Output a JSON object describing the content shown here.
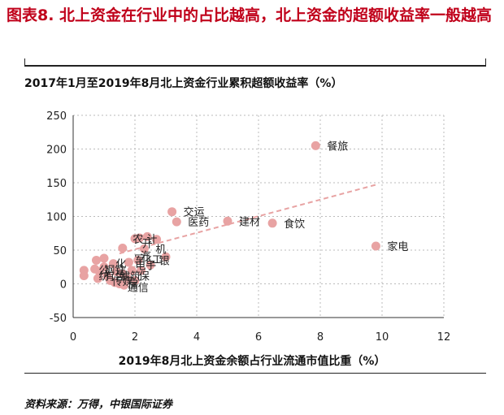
{
  "figure": {
    "title": "图表8. 北上资金在行业中的占比越高，北上资金的超额收益率一般越高",
    "source": "资料来源：万得，中银国际证券"
  },
  "colors": {
    "title": "#c0001a",
    "point": "#e8a3a3",
    "trend": "#e8a3a3",
    "grid": "#bbbbbb"
  },
  "chart_data": {
    "type": "scatter",
    "title": "2017年1月至2019年8月北上资金行业累积超额收益率（%）",
    "xlabel": "2019年8月北上资金余额占行业流通市值比重（%）",
    "ylabel": "",
    "xlim": [
      0,
      12
    ],
    "ylim": [
      -50,
      250
    ],
    "xticks": [
      0,
      2,
      4,
      6,
      8,
      10,
      12
    ],
    "yticks": [
      -50,
      0,
      50,
      100,
      150,
      200,
      250
    ],
    "grid": true,
    "trendline": {
      "x": [
        1.5,
        9.8
      ],
      "y": [
        45,
        147
      ]
    },
    "points": [
      {
        "x": 7.85,
        "y": 205,
        "label": "餐旅"
      },
      {
        "x": 9.8,
        "y": 56,
        "label": "家电"
      },
      {
        "x": 6.45,
        "y": 90,
        "label": "食饮"
      },
      {
        "x": 3.2,
        "y": 107,
        "label": "交运"
      },
      {
        "x": 3.35,
        "y": 92,
        "label": "医药"
      },
      {
        "x": 5.0,
        "y": 93,
        "label": "建材"
      },
      {
        "x": 2.4,
        "y": 70,
        "label": ""
      },
      {
        "x": 2.15,
        "y": 68,
        "label": ""
      },
      {
        "x": 2.0,
        "y": 67,
        "label": ""
      },
      {
        "x": 1.6,
        "y": 53,
        "label": ""
      },
      {
        "x": 2.3,
        "y": 52,
        "label": "机"
      },
      {
        "x": 2.7,
        "y": 66,
        "label": ""
      },
      {
        "x": 3.0,
        "y": 40,
        "label": ""
      },
      {
        "x": 1.0,
        "y": 38,
        "label": ""
      },
      {
        "x": 0.75,
        "y": 35,
        "label": ""
      },
      {
        "x": 1.3,
        "y": 30,
        "label": ""
      },
      {
        "x": 1.8,
        "y": 32,
        "label": ""
      },
      {
        "x": 2.1,
        "y": 35,
        "label": ""
      },
      {
        "x": 0.35,
        "y": 20,
        "label": ""
      },
      {
        "x": 0.35,
        "y": 12,
        "label": ""
      },
      {
        "x": 0.7,
        "y": 22,
        "label": ""
      },
      {
        "x": 0.85,
        "y": 18,
        "label": ""
      },
      {
        "x": 1.0,
        "y": 25,
        "label": ""
      },
      {
        "x": 1.1,
        "y": 12,
        "label": ""
      },
      {
        "x": 1.4,
        "y": 18,
        "label": ""
      },
      {
        "x": 1.6,
        "y": 15,
        "label": ""
      },
      {
        "x": 1.75,
        "y": 8,
        "label": ""
      },
      {
        "x": 1.9,
        "y": 20,
        "label": ""
      },
      {
        "x": 2.2,
        "y": 20,
        "label": ""
      },
      {
        "x": 0.8,
        "y": 8,
        "label": ""
      },
      {
        "x": 1.2,
        "y": 5,
        "label": ""
      },
      {
        "x": 1.5,
        "y": 0,
        "label": ""
      },
      {
        "x": 1.65,
        "y": -2,
        "label": ""
      },
      {
        "x": 2.0,
        "y": 5,
        "label": ""
      },
      {
        "x": 2.5,
        "y": 28,
        "label": ""
      },
      {
        "x": 1.35,
        "y": 2,
        "label": ""
      }
    ],
    "overlap_labels": [
      {
        "x": 2.1,
        "y": 67,
        "text": "农"
      },
      {
        "x": 2.55,
        "y": 67,
        "text": "计"
      },
      {
        "x": 2.4,
        "y": 60,
        "text": "开"
      },
      {
        "x": 2.35,
        "y": 42,
        "text": "汽"
      },
      {
        "x": 2.15,
        "y": 37,
        "text": "军"
      },
      {
        "x": 2.55,
        "y": 37,
        "text": "化工"
      },
      {
        "x": 2.95,
        "y": 35,
        "text": "银"
      },
      {
        "x": 1.55,
        "y": 30,
        "text": "化"
      },
      {
        "x": 2.35,
        "y": 28,
        "text": "电子"
      },
      {
        "x": 1.0,
        "y": 21,
        "text": "公"
      },
      {
        "x": 1.35,
        "y": 21,
        "text": "钢铁"
      },
      {
        "x": 1.0,
        "y": 12,
        "text": "纺"
      },
      {
        "x": 1.35,
        "y": 12,
        "text": "有色"
      },
      {
        "x": 1.85,
        "y": 12,
        "text": "建筑"
      },
      {
        "x": 2.3,
        "y": 12,
        "text": "保"
      },
      {
        "x": 1.6,
        "y": 4,
        "text": "传媒"
      },
      {
        "x": 1.95,
        "y": 0,
        "text": "房"
      },
      {
        "x": 2.1,
        "y": -5,
        "text": "通信"
      }
    ]
  }
}
